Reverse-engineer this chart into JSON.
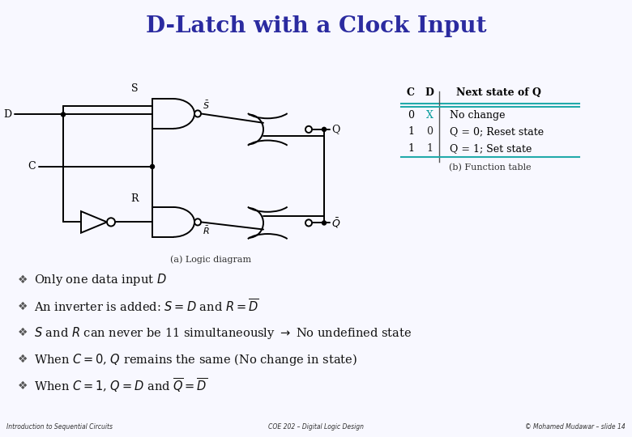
{
  "title": "D-Latch with a Clock Input",
  "title_color": "#2B2BA0",
  "title_bg_color": "#C8C8E8",
  "slide_bg_color": "#F8F8FF",
  "footer_bg_color": "#F5F5DC",
  "footer_left": "Introduction to Sequential Circuits",
  "footer_center": "COE 202 – Digital Logic Design",
  "footer_right": "© Mohamed Mudawar – slide 14",
  "bullet_lines": [
    "Only one data input $D$",
    "An inverter is added: $S = D$ and $R = \\overline{D}$",
    "$S$ and $R$ can never be 11 simultaneously $\\rightarrow$ No undefined state",
    "When $C = 0$, $Q$ remains the same (No change in state)",
    "When $C = 1$, $Q = D$ and $\\overline{Q} = \\overline{D}$"
  ],
  "table_rows": [
    [
      "0",
      "X",
      "No change"
    ],
    [
      "1",
      "0",
      "Q = 0; Reset state"
    ],
    [
      "1",
      "1",
      "Q = 1; Set state"
    ]
  ],
  "table_x_color": "#009999",
  "diagram_caption": "(a) Logic diagram",
  "table_caption": "(b) Function table"
}
